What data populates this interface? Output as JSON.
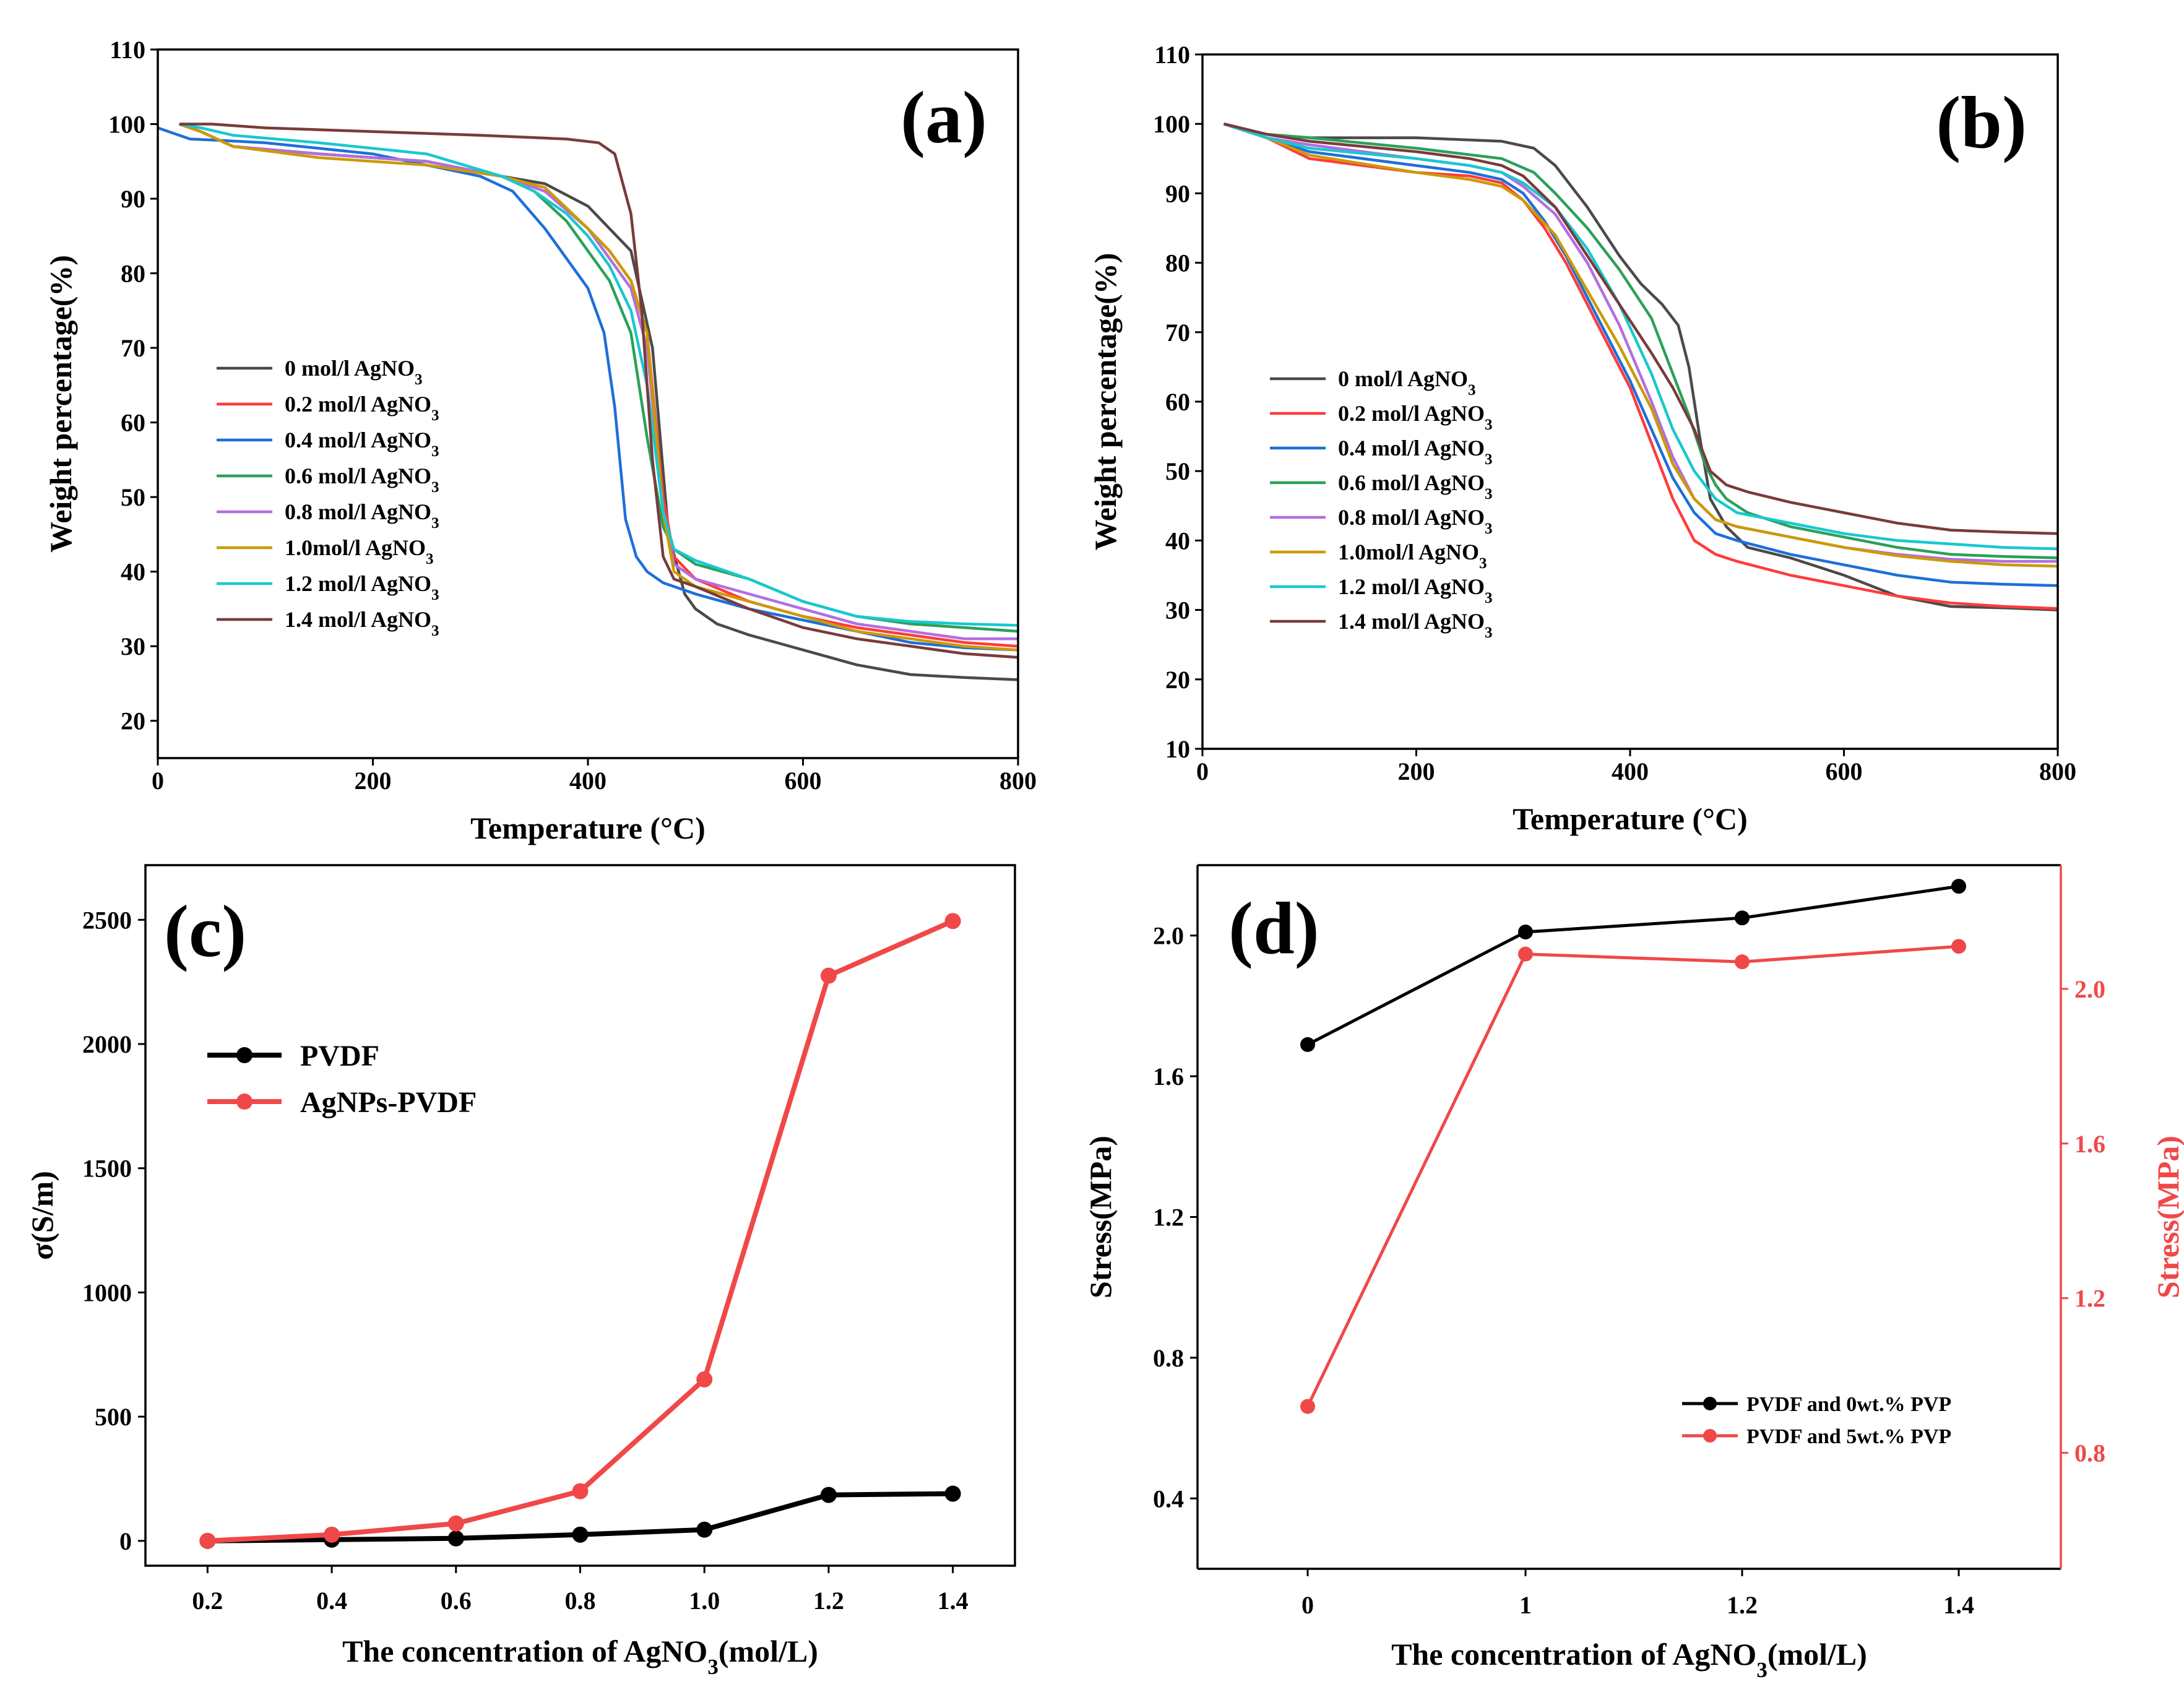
{
  "colors": {
    "s0": "#4a4a4a",
    "s02": "#ff3b3b",
    "s04": "#1e6fd9",
    "s06": "#2ca05a",
    "s08": "#b36ee0",
    "s10": "#cc9a06",
    "s12": "#18c8d0",
    "s14": "#7a3b3b",
    "black": "#000000",
    "red": "#f04848"
  },
  "chart_data": [
    {
      "id": "a",
      "type": "line",
      "panel_label": "(a)",
      "xlabel": "Temperature (°C)",
      "ylabel": "Weight percentage(%)",
      "xlim": [
        0,
        800
      ],
      "ylim": [
        15,
        110
      ],
      "xticks": [
        "0",
        "200",
        "400",
        "600",
        "800"
      ],
      "yticks": [
        "20",
        "30",
        "40",
        "50",
        "60",
        "70",
        "80",
        "90",
        "100",
        "110"
      ],
      "legend": [
        {
          "label": "0 mol/l AgNO",
          "sub": "3"
        },
        {
          "label": "0.2 mol/l AgNO",
          "sub": "3"
        },
        {
          "label": "0.4 mol/l AgNO",
          "sub": "3"
        },
        {
          "label": "0.6 mol/l AgNO",
          "sub": "3"
        },
        {
          "label": "0.8 mol/l AgNO",
          "sub": "3"
        },
        {
          "label": "1.0mol/l AgNO",
          "sub": "3"
        },
        {
          "label": "1.2 mol/l AgNO",
          "sub": "3"
        },
        {
          "label": "1.4 mol/l AgNO",
          "sub": "3"
        }
      ],
      "series": [
        {
          "name": "0 mol/l AgNO3",
          "color_key": "s0",
          "x": [
            20,
            40,
            70,
            150,
            250,
            320,
            360,
            400,
            420,
            440,
            460,
            475,
            490,
            500,
            520,
            550,
            600,
            650,
            700,
            750,
            800
          ],
          "y": [
            100,
            99,
            97,
            96,
            95,
            93,
            92,
            89,
            86,
            83,
            70,
            45,
            37,
            35,
            33,
            31.5,
            29.5,
            27.5,
            26.2,
            25.8,
            25.5
          ]
        },
        {
          "name": "0.2 mol/l AgNO3",
          "color_key": "s02",
          "x": [
            20,
            40,
            70,
            150,
            250,
            320,
            360,
            400,
            420,
            440,
            455,
            470,
            480,
            500,
            550,
            600,
            650,
            700,
            750,
            800
          ],
          "y": [
            100,
            99,
            97,
            96,
            95,
            93,
            91,
            86,
            83,
            79,
            72,
            50,
            42,
            39,
            36,
            34,
            32.5,
            31.5,
            30.5,
            30
          ]
        },
        {
          "name": "0.4 mol/l AgNO3",
          "color_key": "s04",
          "x": [
            0,
            30,
            60,
            100,
            200,
            300,
            330,
            360,
            380,
            400,
            415,
            425,
            435,
            445,
            455,
            470,
            500,
            550,
            600,
            650,
            700,
            750,
            800
          ],
          "y": [
            99.5,
            98,
            97.8,
            97.5,
            96,
            93,
            91,
            86,
            82,
            78,
            72,
            62,
            47,
            42,
            40,
            38.5,
            37,
            35,
            33.5,
            32,
            30.5,
            29.8,
            29.5
          ]
        },
        {
          "name": "0.6 mol/l AgNO3",
          "color_key": "s06",
          "x": [
            20,
            40,
            70,
            150,
            250,
            320,
            350,
            380,
            400,
            420,
            440,
            455,
            470,
            480,
            500,
            550,
            600,
            650,
            700,
            750,
            800
          ],
          "y": [
            100,
            99,
            97,
            96,
            95,
            93,
            91,
            87,
            83,
            79,
            72,
            58,
            46,
            43,
            41,
            39,
            36,
            34,
            33,
            32.5,
            32
          ]
        },
        {
          "name": "0.8 mol/l AgNO3",
          "color_key": "s08",
          "x": [
            20,
            40,
            70,
            150,
            250,
            320,
            360,
            400,
            420,
            440,
            455,
            470,
            480,
            500,
            550,
            600,
            650,
            700,
            750,
            800
          ],
          "y": [
            100,
            99,
            97,
            96,
            95,
            93,
            91,
            86,
            82,
            78,
            70,
            48,
            41,
            39,
            37,
            35,
            33,
            32,
            31,
            31
          ]
        },
        {
          "name": "1.0mol/l AgNO3",
          "color_key": "s10",
          "x": [
            20,
            40,
            70,
            150,
            250,
            320,
            360,
            400,
            420,
            440,
            455,
            470,
            480,
            500,
            550,
            600,
            650,
            700,
            750,
            800
          ],
          "y": [
            100,
            99,
            97,
            95.5,
            94.5,
            93,
            91.5,
            86,
            83,
            79,
            72,
            48,
            40,
            38,
            36,
            34,
            32,
            31,
            30,
            29.5
          ]
        },
        {
          "name": "1.2 mol/l AgNO3",
          "color_key": "s12",
          "x": [
            20,
            40,
            70,
            150,
            250,
            320,
            350,
            380,
            400,
            420,
            440,
            455,
            470,
            480,
            500,
            550,
            600,
            650,
            700,
            750,
            800
          ],
          "y": [
            100,
            99.5,
            98.5,
            97.5,
            96,
            93,
            91,
            88,
            85,
            81,
            75,
            65,
            48,
            43,
            41.5,
            39,
            36,
            34,
            33.3,
            33,
            32.8
          ]
        },
        {
          "name": "1.4 mol/l AgNO3",
          "color_key": "s14",
          "x": [
            20,
            50,
            100,
            200,
            300,
            380,
            410,
            425,
            440,
            450,
            460,
            470,
            480,
            500,
            550,
            600,
            650,
            700,
            750,
            800
          ],
          "y": [
            100,
            100,
            99.5,
            99,
            98.5,
            98,
            97.5,
            96,
            88,
            75,
            55,
            42,
            39,
            38,
            35,
            32.5,
            31,
            30,
            29,
            28.5
          ]
        }
      ]
    },
    {
      "id": "b",
      "type": "line",
      "panel_label": "(b)",
      "xlabel": "Temperature (°C)",
      "ylabel": "Weight percentage(%)",
      "xlim": [
        0,
        800
      ],
      "ylim": [
        10,
        110
      ],
      "xticks": [
        "0",
        "200",
        "400",
        "600",
        "800"
      ],
      "yticks": [
        "10",
        "20",
        "30",
        "40",
        "50",
        "60",
        "70",
        "80",
        "90",
        "100",
        "110"
      ],
      "legend": [
        {
          "label": "0 mol/l AgNO",
          "sub": "3"
        },
        {
          "label": "0.2 mol/l AgNO",
          "sub": "3"
        },
        {
          "label": "0.4 mol/l AgNO",
          "sub": "3"
        },
        {
          "label": "0.6 mol/l AgNO",
          "sub": "3"
        },
        {
          "label": "0.8 mol/l AgNO",
          "sub": "3"
        },
        {
          "label": "1.0mol/l AgNO",
          "sub": "3"
        },
        {
          "label": "1.2 mol/l AgNO",
          "sub": "3"
        },
        {
          "label": "1.4 mol/l AgNO",
          "sub": "3"
        }
      ],
      "series": [
        {
          "name": "0 mol/l AgNO3",
          "color_key": "s0",
          "x": [
            20,
            60,
            100,
            200,
            280,
            310,
            330,
            360,
            390,
            410,
            430,
            445,
            455,
            465,
            475,
            490,
            510,
            550,
            600,
            650,
            700,
            750,
            800
          ],
          "y": [
            100,
            98.5,
            98,
            98,
            97.5,
            96.5,
            94,
            88,
            81,
            77,
            74,
            71,
            65,
            55,
            46,
            42,
            39,
            37.5,
            35,
            32,
            30.5,
            30.3,
            30
          ]
        },
        {
          "name": "0.2 mol/l AgNO3",
          "color_key": "s02",
          "x": [
            20,
            60,
            100,
            150,
            200,
            250,
            280,
            300,
            320,
            340,
            360,
            380,
            400,
            420,
            440,
            460,
            480,
            500,
            550,
            600,
            650,
            700,
            750,
            800
          ],
          "y": [
            100,
            98,
            95,
            94,
            93,
            92.5,
            91.5,
            89,
            85,
            80,
            74,
            68,
            62,
            54,
            46,
            40,
            38,
            37,
            35,
            33.5,
            32,
            31,
            30.5,
            30.2
          ]
        },
        {
          "name": "0.4 mol/l AgNO3",
          "color_key": "s04",
          "x": [
            20,
            60,
            100,
            200,
            250,
            280,
            300,
            320,
            340,
            360,
            380,
            400,
            420,
            440,
            460,
            480,
            500,
            550,
            600,
            650,
            700,
            750,
            800
          ],
          "y": [
            100,
            98,
            96,
            94,
            93,
            92,
            90,
            86,
            81,
            75,
            69,
            63,
            56,
            49,
            44,
            41,
            40,
            38,
            36.5,
            35,
            34,
            33.7,
            33.5
          ]
        },
        {
          "name": "0.6 mol/l AgNO3",
          "color_key": "s06",
          "x": [
            20,
            60,
            100,
            200,
            280,
            310,
            330,
            360,
            390,
            420,
            440,
            455,
            470,
            480,
            490,
            510,
            550,
            600,
            650,
            700,
            750,
            800
          ],
          "y": [
            100,
            98.5,
            98,
            96.5,
            95,
            93,
            90,
            85,
            79,
            72,
            64,
            58,
            51,
            48,
            46,
            44,
            42,
            40.5,
            39,
            38,
            37.7,
            37.5
          ]
        },
        {
          "name": "0.8 mol/l AgNO3",
          "color_key": "s08",
          "x": [
            20,
            60,
            100,
            200,
            250,
            280,
            300,
            330,
            360,
            390,
            420,
            440,
            460,
            480,
            500,
            550,
            600,
            650,
            700,
            750,
            800
          ],
          "y": [
            100,
            98,
            97,
            95,
            94,
            93,
            91,
            87,
            80,
            71,
            60,
            52,
            46,
            43,
            42,
            40.5,
            39,
            38,
            37.3,
            37,
            37
          ]
        },
        {
          "name": "1.0mol/l AgNO3",
          "color_key": "s10",
          "x": [
            20,
            60,
            100,
            200,
            250,
            280,
            300,
            330,
            360,
            390,
            420,
            440,
            460,
            480,
            500,
            550,
            600,
            650,
            700,
            750,
            800
          ],
          "y": [
            100,
            98,
            95.5,
            93,
            92,
            91,
            89,
            84,
            76,
            68,
            59,
            51,
            46,
            43,
            42,
            40.5,
            39,
            37.8,
            37,
            36.5,
            36.3
          ]
        },
        {
          "name": "1.2 mol/l AgNO3",
          "color_key": "s12",
          "x": [
            20,
            60,
            100,
            200,
            250,
            280,
            300,
            330,
            360,
            390,
            420,
            440,
            460,
            480,
            500,
            550,
            600,
            650,
            700,
            750,
            800
          ],
          "y": [
            100,
            98,
            96.5,
            95,
            94,
            93,
            91.5,
            88,
            82,
            74,
            64,
            56,
            50,
            46,
            44,
            42.5,
            41,
            40,
            39.5,
            39,
            38.8
          ]
        },
        {
          "name": "1.4 mol/l AgNO3",
          "color_key": "s14",
          "x": [
            20,
            60,
            100,
            200,
            250,
            280,
            300,
            330,
            360,
            390,
            420,
            440,
            460,
            475,
            490,
            510,
            550,
            600,
            650,
            700,
            750,
            800
          ],
          "y": [
            100,
            98.5,
            97.5,
            96,
            95,
            94,
            92.5,
            88,
            81,
            74,
            67,
            62,
            56,
            50,
            48,
            47,
            45.5,
            44,
            42.5,
            41.5,
            41.2,
            41
          ]
        }
      ]
    },
    {
      "id": "c",
      "type": "line",
      "panel_label": "(c)",
      "xlabel": "The concentration of AgNO",
      "xlabel_sub": "3",
      "xlabel_tail": "(mol/L)",
      "ylabel": "σ(S/m)",
      "categories": [
        "0.2",
        "0.4",
        "0.6",
        "0.8",
        "1.0",
        "1.2",
        "1.4"
      ],
      "xlim": [
        0.1,
        1.5
      ],
      "ylim": [
        -100,
        2720
      ],
      "yticks": [
        "0",
        "500",
        "1000",
        "1500",
        "2000",
        "2500"
      ],
      "series": [
        {
          "name": "PVDF",
          "color_key": "black",
          "x": [
            0.2,
            0.4,
            0.6,
            0.8,
            1.0,
            1.2,
            1.4
          ],
          "y": [
            0,
            5,
            10,
            25,
            45,
            185,
            190
          ]
        },
        {
          "name": "AgNPs-PVDF",
          "color_key": "red",
          "x": [
            0.2,
            0.4,
            0.6,
            0.8,
            1.0,
            1.2,
            1.4
          ],
          "y": [
            0,
            25,
            70,
            200,
            650,
            2275,
            2495
          ]
        }
      ]
    },
    {
      "id": "d",
      "type": "line",
      "panel_label": "(d)",
      "xlabel": "The concentration of AgNO",
      "xlabel_sub": "3",
      "xlabel_tail": "(mol/L)",
      "ylabel": "Stress(MPa)",
      "ylabel_right": "Stress(MPa)",
      "categories": [
        "0",
        "1",
        "1.2",
        "1.4"
      ],
      "ylim_left": [
        0.2,
        2.2
      ],
      "ylim_right": [
        0.5,
        2.32
      ],
      "yticks_left": [
        "0.4",
        "0.8",
        "1.2",
        "1.6",
        "2.0"
      ],
      "yticks_right": [
        "0.8",
        "1.2",
        "1.6",
        "2.0"
      ],
      "series": [
        {
          "name": "PVDF and 0wt.% PVP",
          "axis": "left",
          "color_key": "black",
          "y": [
            1.69,
            2.01,
            2.05,
            2.14
          ]
        },
        {
          "name": "PVDF and 5wt.% PVP",
          "axis": "right",
          "color_key": "red",
          "y": [
            0.92,
            2.09,
            2.07,
            2.11
          ]
        }
      ]
    }
  ]
}
